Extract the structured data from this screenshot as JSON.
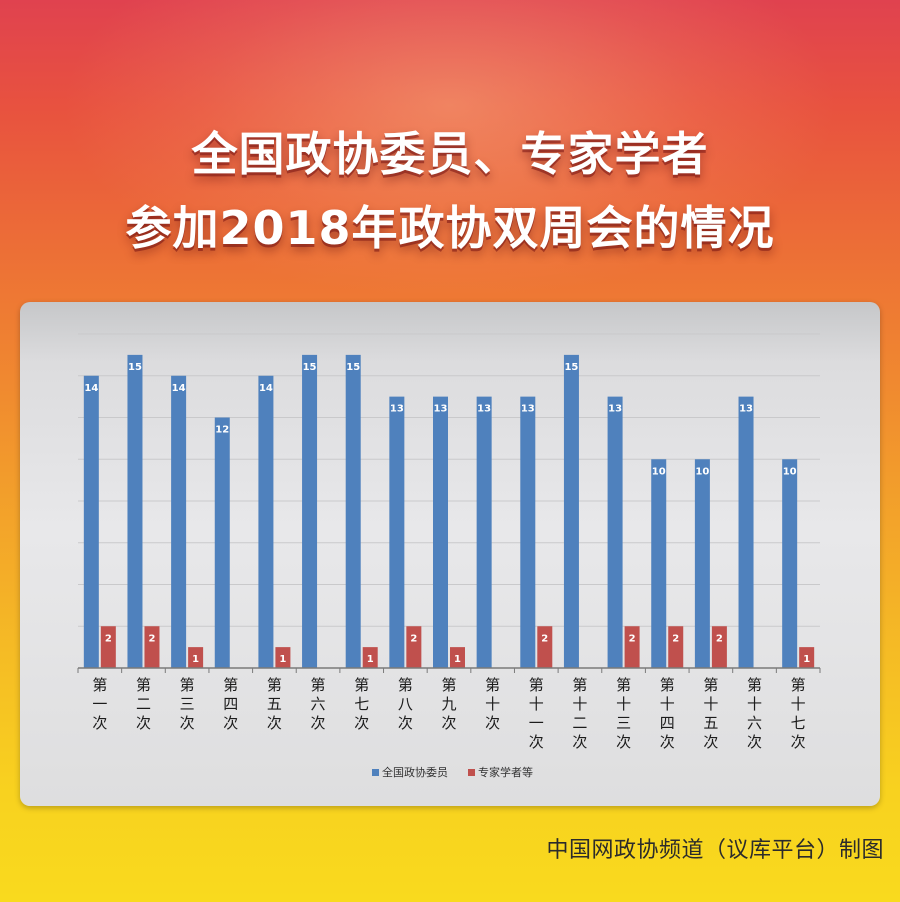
{
  "title": {
    "line1": "全国政协委员、专家学者",
    "line2": "参加2018年政协双周会的情况"
  },
  "credit": "中国网政协频道（议库平台）制图",
  "chart_data": {
    "type": "bar",
    "categories": [
      "第一次",
      "第二次",
      "第三次",
      "第四次",
      "第五次",
      "第六次",
      "第七次",
      "第八次",
      "第九次",
      "第十次",
      "第十一次",
      "第十二次",
      "第十三次",
      "第十四次",
      "第十五次",
      "第十六次",
      "第十七次"
    ],
    "series": [
      {
        "name": "全国政协委员",
        "color": "#4f81bd",
        "values": [
          14,
          15,
          14,
          12,
          14,
          15,
          15,
          13,
          13,
          13,
          13,
          15,
          13,
          10,
          10,
          13,
          10
        ]
      },
      {
        "name": "专家学者等",
        "color": "#c0504d",
        "values": [
          2,
          2,
          1,
          null,
          1,
          null,
          1,
          2,
          1,
          null,
          2,
          null,
          2,
          2,
          2,
          null,
          1
        ]
      }
    ],
    "ylim": [
      0,
      16
    ],
    "grid": true,
    "legend": "bottom"
  }
}
